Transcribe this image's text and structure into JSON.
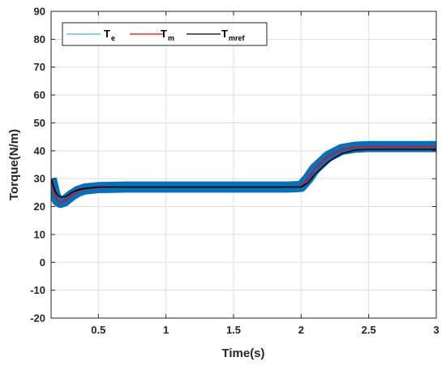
{
  "chart_data": {
    "type": "line",
    "title": "",
    "xlabel": "Time(s)",
    "ylabel": "Torque(N/m)",
    "xlim": [
      0.15,
      3
    ],
    "ylim": [
      -20,
      90
    ],
    "xticks": [
      0.5,
      1,
      1.5,
      2,
      2.5,
      3
    ],
    "xtick_labels": [
      "0.5",
      "1",
      "1.5",
      "2",
      "2.5",
      "3"
    ],
    "yticks": [
      -20,
      -10,
      0,
      10,
      20,
      30,
      40,
      50,
      60,
      70,
      80,
      90
    ],
    "ytick_labels": [
      "-20",
      "-10",
      "0",
      "10",
      "20",
      "30",
      "40",
      "50",
      "60",
      "70",
      "80",
      "90"
    ],
    "grid": true,
    "legend_position": "top-left",
    "series": [
      {
        "name": "T",
        "subscript": "e",
        "color": "#0072BD",
        "style": "thick-ripple-band",
        "band_halfwidth": 2,
        "x": [
          0.15,
          0.18,
          0.2,
          0.22,
          0.25,
          0.3,
          0.35,
          0.4,
          0.5,
          0.7,
          1.0,
          1.5,
          1.9,
          2.0,
          2.05,
          2.1,
          2.2,
          2.3,
          2.4,
          2.5,
          2.7,
          3.0
        ],
        "values": [
          30,
          24,
          22,
          21.5,
          22,
          24,
          25.5,
          26.3,
          26.8,
          27,
          27,
          27,
          27,
          27.2,
          30,
          33.5,
          38,
          40.5,
          41.3,
          41.5,
          41.5,
          41.5
        ]
      },
      {
        "name": "T",
        "subscript": "m",
        "color": "#FF0000",
        "style": "line",
        "x": [
          0.15,
          0.18,
          0.2,
          0.22,
          0.25,
          0.3,
          0.35,
          0.4,
          0.5,
          0.7,
          1.0,
          1.5,
          1.9,
          2.0,
          2.05,
          2.1,
          2.2,
          2.3,
          2.4,
          2.5,
          2.7,
          3.0
        ],
        "values": [
          30,
          24,
          22,
          21.5,
          22,
          24,
          25.5,
          26.3,
          26.8,
          27,
          27,
          27,
          27,
          27.2,
          30,
          33.5,
          38,
          40.5,
          41.3,
          41.5,
          41.5,
          41.5
        ]
      },
      {
        "name": "T",
        "subscript": "mref",
        "color": "#000000",
        "style": "line",
        "x": [
          0.15,
          0.18,
          0.2,
          0.22,
          0.25,
          0.28,
          0.3,
          0.35,
          0.4,
          0.5,
          0.7,
          1.0,
          1.5,
          1.9,
          2.0,
          2.05,
          2.1,
          2.2,
          2.3,
          2.4,
          2.5,
          2.7,
          3.0
        ],
        "values": [
          30,
          25.5,
          24,
          23.5,
          23.5,
          24.2,
          25,
          26,
          26.5,
          27,
          27,
          27,
          27,
          27,
          27,
          28.5,
          31.5,
          36,
          39,
          40.3,
          40.5,
          40.5,
          40.5
        ]
      }
    ]
  }
}
